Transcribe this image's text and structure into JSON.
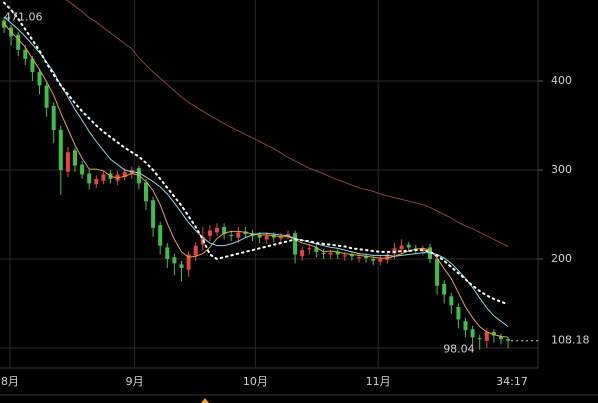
{
  "chart_data": {
    "type": "candlestick",
    "categories": [
      null,
      null,
      null,
      null,
      null,
      null,
      null,
      null,
      null,
      null,
      null,
      null,
      null,
      null,
      null,
      null,
      null,
      null,
      null,
      null,
      null,
      null,
      null,
      null,
      null,
      null,
      null,
      null,
      null,
      null,
      null,
      null,
      null,
      null,
      null,
      null,
      null,
      null,
      null,
      null,
      null,
      null,
      null,
      null,
      null,
      null,
      null,
      null,
      null,
      null,
      null,
      null,
      null,
      null,
      null,
      null,
      null,
      null,
      null,
      null,
      null,
      null,
      null,
      null,
      null,
      null,
      null,
      null,
      null,
      null,
      null,
      null
    ],
    "open": [
      468,
      460,
      452,
      435,
      425,
      410,
      395,
      372,
      345,
      298,
      322,
      306,
      296,
      284,
      288,
      296,
      288,
      292,
      296,
      302,
      286,
      266,
      238,
      213,
      202,
      194,
      188,
      204,
      216,
      226,
      230,
      236,
      227,
      224,
      231,
      229,
      227,
      222,
      227,
      223,
      226,
      229,
      203,
      211,
      213,
      207,
      205,
      208,
      204,
      205,
      202,
      203,
      200,
      197,
      199,
      206,
      211,
      216,
      212,
      209,
      213,
      200,
      172,
      158,
      146,
      130,
      121,
      111,
      108,
      118,
      113,
      110
    ],
    "high": [
      471.06,
      463,
      455,
      440,
      428,
      414,
      398,
      376,
      350,
      326,
      325,
      310,
      300,
      294,
      298,
      300,
      299,
      302,
      304,
      305,
      290,
      270,
      242,
      218,
      206,
      198,
      209,
      219,
      236,
      238,
      240,
      240,
      232,
      236,
      236,
      233,
      230,
      230,
      230,
      229,
      232,
      232,
      214,
      216,
      216,
      211,
      210,
      211,
      208,
      208,
      206,
      206,
      203,
      204,
      208,
      218,
      222,
      219,
      216,
      215,
      217,
      203,
      176,
      162,
      150,
      134,
      125,
      115,
      122,
      121,
      116,
      112
    ],
    "low": [
      454,
      440,
      428,
      418,
      400,
      385,
      360,
      330,
      272,
      292,
      298,
      290,
      278,
      280,
      284,
      285,
      283,
      288,
      290,
      278,
      255,
      225,
      205,
      190,
      182,
      175,
      180,
      198,
      210,
      220,
      226,
      222,
      220,
      218,
      224,
      220,
      218,
      217,
      219,
      218,
      222,
      195,
      198,
      205,
      202,
      200,
      200,
      200,
      198,
      198,
      196,
      196,
      193,
      193,
      195,
      200,
      205,
      208,
      205,
      204,
      195,
      160,
      150,
      138,
      122,
      112,
      104,
      98.04,
      100,
      106,
      104,
      100
    ],
    "close": [
      460,
      450,
      435,
      425,
      410,
      395,
      370,
      345,
      300,
      320,
      305,
      295,
      285,
      290,
      295,
      290,
      295,
      298,
      300,
      285,
      265,
      235,
      215,
      200,
      195,
      190,
      205,
      215,
      225,
      232,
      235,
      228,
      226,
      230,
      228,
      226,
      224,
      226,
      224,
      225,
      228,
      205,
      210,
      212,
      208,
      206,
      207,
      205,
      204,
      203,
      202,
      201,
      198,
      200,
      205,
      212,
      215,
      213,
      210,
      212,
      200,
      170,
      160,
      148,
      132,
      120,
      112,
      110,
      118,
      114,
      110,
      108.18
    ],
    "up_color": "#e5453c",
    "down_color": "#3fbf4a",
    "lines": [
      {
        "color": "#e8a03a",
        "style": "solid",
        "values": [
          465,
          455,
          447,
          438,
          425,
          413,
          399,
          384,
          364,
          346,
          328,
          313,
          301,
          301,
          299,
          293,
          291,
          293,
          296,
          294,
          287,
          277,
          261,
          240,
          222,
          208,
          202,
          203,
          206,
          213,
          223,
          229,
          231,
          231,
          230,
          228,
          227,
          227,
          226,
          225,
          225,
          222,
          218,
          216,
          213,
          208,
          209,
          208,
          206,
          205,
          204,
          203,
          202,
          201,
          201,
          203,
          206,
          209,
          211,
          212,
          210,
          201,
          189,
          178,
          162,
          146,
          134,
          124,
          118,
          115,
          113,
          112
        ]
      },
      {
        "color": "#86dbe3",
        "style": "solid",
        "values": [
          472,
          465,
          458,
          450,
          441,
          432,
          421,
          410,
          395,
          382,
          368,
          356,
          343,
          332,
          322,
          312,
          306,
          300,
          298,
          297,
          292,
          287,
          281,
          273,
          263,
          252,
          241,
          232,
          224,
          218,
          215,
          215,
          217,
          220,
          224,
          227,
          229,
          229,
          228,
          227,
          226,
          223,
          221,
          219,
          217,
          215,
          213,
          212,
          210,
          208,
          206,
          205,
          204,
          204,
          204,
          203,
          204,
          205,
          206,
          207,
          207,
          205,
          201,
          195,
          187,
          178,
          168,
          156,
          145,
          136,
          130,
          124
        ]
      },
      {
        "color": "#ffffff",
        "style": "dotted",
        "values": [
          488,
          480,
          470,
          458,
          446,
          434,
          420,
          407,
          395,
          385,
          375,
          366,
          358,
          350,
          343,
          337,
          331,
          325,
          320,
          315,
          308,
          300,
          290,
          280,
          270,
          260,
          248,
          236,
          222,
          205,
          200,
          202,
          204,
          206,
          208,
          210,
          212,
          214,
          216,
          218,
          220,
          222,
          221,
          220,
          218,
          217,
          216,
          215,
          214,
          212,
          211,
          210,
          209,
          208,
          208,
          208,
          209,
          209,
          210,
          210,
          208,
          204,
          198,
          191,
          184,
          177,
          170,
          164,
          159,
          155,
          152,
          149
        ]
      },
      {
        "color": "#8e3b4c",
        "style": "solid",
        "values": [
          null,
          null,
          null,
          null,
          null,
          null,
          null,
          null,
          495,
          490,
          484,
          478,
          471,
          466,
          460,
          454,
          448,
          442,
          436,
          426,
          418,
          410,
          403,
          396,
          389,
          382,
          376,
          371,
          366,
          361,
          357,
          352,
          348,
          344,
          340,
          336,
          332,
          328,
          324,
          319,
          314,
          310,
          306,
          302,
          299,
          296,
          292,
          289,
          286,
          283,
          280,
          278,
          276,
          273,
          271,
          269,
          267,
          265,
          263,
          261,
          258,
          254,
          250,
          246,
          241,
          237,
          234,
          230,
          226,
          222,
          218,
          214
        ]
      }
    ],
    "ylim": [
      77.5,
      491
    ],
    "yticks": [
      200,
      300,
      400
    ],
    "xticks": [
      {
        "value": 0.85,
        "label": "8月"
      },
      {
        "value": 18.4,
        "label": "9月"
      },
      {
        "value": 35.4,
        "label": "10月"
      },
      {
        "value": 52.7,
        "label": "11月"
      }
    ],
    "grid": true,
    "max_label": "471.06",
    "min_label": "98.04",
    "last_label": "108.18",
    "time_label": "34:17"
  }
}
